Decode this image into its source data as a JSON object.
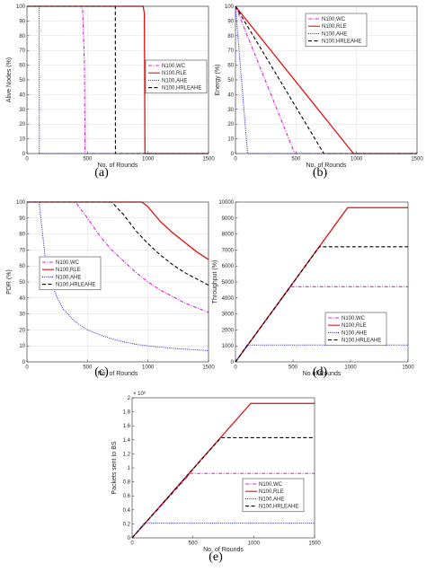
{
  "colors": {
    "WC": "#e020e0",
    "RLE": "#e01010",
    "AHE": "#2020e0",
    "HRLEAHE": "#000000"
  },
  "styles": {
    "WC": "dashdot",
    "RLE": "solid",
    "AHE": "dotted",
    "HRLEAHE": "dashed"
  },
  "chart_data": [
    {
      "id": "a",
      "type": "line",
      "panel_label": "(a)",
      "xlabel": "No. of Rounds",
      "ylabel": "Alive Nodes (%)",
      "xlim": [
        0,
        1500
      ],
      "ylim": [
        0,
        100
      ],
      "xticks": [
        0,
        500,
        1000,
        1500
      ],
      "yticks": [
        0,
        10,
        20,
        30,
        40,
        50,
        60,
        70,
        80,
        90,
        100
      ],
      "grid": true,
      "legend_position": "center-right",
      "series": [
        {
          "name": "N100,WC",
          "key": "WC",
          "points": [
            [
              0,
              100
            ],
            [
              440,
              100
            ],
            [
              460,
              98
            ],
            [
              475,
              60
            ],
            [
              480,
              0
            ],
            [
              1500,
              0
            ]
          ]
        },
        {
          "name": "N100,RLE",
          "key": "RLE",
          "points": [
            [
              0,
              100
            ],
            [
              960,
              100
            ],
            [
              970,
              95
            ],
            [
              975,
              0
            ],
            [
              1500,
              0
            ]
          ]
        },
        {
          "name": "N100,AHE",
          "key": "AHE",
          "points": [
            [
              0,
              100
            ],
            [
              100,
              100
            ],
            [
              102,
              0
            ],
            [
              1500,
              0
            ]
          ]
        },
        {
          "name": "N100,HRLEAHE",
          "key": "HRLEAHE",
          "points": [
            [
              0,
              100
            ],
            [
              730,
              100
            ],
            [
              731,
              0
            ],
            [
              1500,
              0
            ]
          ]
        }
      ]
    },
    {
      "id": "b",
      "type": "line",
      "panel_label": "(b)",
      "xlabel": "No. of Rounds",
      "ylabel": "Energy (%)",
      "xlim": [
        0,
        1500
      ],
      "ylim": [
        0,
        100
      ],
      "xticks": [
        0,
        500,
        1000,
        1500
      ],
      "yticks": [
        0,
        10,
        20,
        30,
        40,
        50,
        60,
        70,
        80,
        90,
        100
      ],
      "grid": true,
      "legend_position": "top-right",
      "series": [
        {
          "name": "N100,WC",
          "key": "WC",
          "points": [
            [
              0,
              100
            ],
            [
              490,
              0
            ],
            [
              1500,
              0
            ]
          ]
        },
        {
          "name": "N100,RLE",
          "key": "RLE",
          "points": [
            [
              0,
              100
            ],
            [
              975,
              0
            ],
            [
              1500,
              0
            ]
          ]
        },
        {
          "name": "N100,AHE",
          "key": "AHE",
          "points": [
            [
              0,
              100
            ],
            [
              100,
              0
            ],
            [
              1500,
              0
            ]
          ]
        },
        {
          "name": "N100,HRLEAHE",
          "key": "HRLEAHE",
          "points": [
            [
              0,
              100
            ],
            [
              730,
              0
            ],
            [
              1500,
              0
            ]
          ]
        }
      ]
    },
    {
      "id": "c",
      "type": "line",
      "panel_label": "(c)",
      "xlabel": "No. of Rounds",
      "ylabel": "PDR (%)",
      "xlim": [
        0,
        1500
      ],
      "ylim": [
        0,
        100
      ],
      "xticks": [
        0,
        500,
        1000,
        1500
      ],
      "yticks": [
        0,
        10,
        20,
        30,
        40,
        50,
        60,
        70,
        80,
        90,
        100
      ],
      "grid": true,
      "legend_position": "center-left",
      "series": [
        {
          "name": "N100,WC",
          "key": "WC",
          "points": [
            [
              0,
              100
            ],
            [
              400,
              100
            ],
            [
              500,
              90
            ],
            [
              600,
              79
            ],
            [
              700,
              70
            ],
            [
              800,
              63
            ],
            [
              900,
              56
            ],
            [
              1000,
              50
            ],
            [
              1100,
              45
            ],
            [
              1200,
              41
            ],
            [
              1300,
              37
            ],
            [
              1400,
              34
            ],
            [
              1500,
              31
            ]
          ]
        },
        {
          "name": "N100,RLE",
          "key": "RLE",
          "points": [
            [
              0,
              100
            ],
            [
              950,
              100
            ],
            [
              1000,
              97
            ],
            [
              1100,
              88
            ],
            [
              1200,
              81
            ],
            [
              1300,
              75
            ],
            [
              1400,
              69
            ],
            [
              1500,
              64
            ]
          ]
        },
        {
          "name": "N100,AHE",
          "key": "AHE",
          "points": [
            [
              0,
              100
            ],
            [
              100,
              100
            ],
            [
              150,
              66
            ],
            [
              200,
              50
            ],
            [
              250,
              40
            ],
            [
              300,
              33
            ],
            [
              400,
              25
            ],
            [
              500,
              20
            ],
            [
              600,
              17
            ],
            [
              700,
              14.5
            ],
            [
              800,
              12.5
            ],
            [
              900,
              11
            ],
            [
              1000,
              10
            ],
            [
              1200,
              8.5
            ],
            [
              1500,
              7
            ]
          ]
        },
        {
          "name": "N100,HRLEAHE",
          "key": "HRLEAHE",
          "points": [
            [
              0,
              100
            ],
            [
              700,
              100
            ],
            [
              800,
              92
            ],
            [
              900,
              82
            ],
            [
              1000,
              74
            ],
            [
              1100,
              67
            ],
            [
              1200,
              61
            ],
            [
              1300,
              56
            ],
            [
              1400,
              52
            ],
            [
              1500,
              48
            ]
          ]
        }
      ]
    },
    {
      "id": "d",
      "type": "line",
      "panel_label": "(d)",
      "xlabel": "No of Rounds",
      "ylabel": "Throughput (%)",
      "xlim": [
        0,
        1500
      ],
      "ylim": [
        0,
        10000
      ],
      "xticks": [
        0,
        500,
        1000,
        1500
      ],
      "yticks": [
        0,
        1000,
        2000,
        3000,
        4000,
        5000,
        6000,
        7000,
        8000,
        9000,
        10000
      ],
      "grid": false,
      "legend_position": "bottom-right",
      "series": [
        {
          "name": "N100,WC",
          "key": "WC",
          "points": [
            [
              0,
              0
            ],
            [
              480,
              4700
            ],
            [
              1500,
              4700
            ]
          ]
        },
        {
          "name": "N100,RLE",
          "key": "RLE",
          "points": [
            [
              0,
              0
            ],
            [
              975,
              9650
            ],
            [
              1500,
              9650
            ]
          ]
        },
        {
          "name": "N100,AHE",
          "key": "AHE",
          "points": [
            [
              0,
              0
            ],
            [
              100,
              1050
            ],
            [
              1500,
              1050
            ]
          ]
        },
        {
          "name": "N100,HRLEAHE",
          "key": "HRLEAHE",
          "points": [
            [
              0,
              0
            ],
            [
              730,
              7200
            ],
            [
              1500,
              7200
            ]
          ]
        }
      ]
    },
    {
      "id": "e",
      "type": "line",
      "panel_label": "(e)",
      "xlabel": "No. of Rounds",
      "ylabel": "Packets sent to BS",
      "exponent_label": "× 10⁶",
      "xlim": [
        0,
        1500
      ],
      "ylim": [
        0,
        2
      ],
      "xticks": [
        0,
        500,
        1000,
        1500
      ],
      "yticks": [
        0,
        0.2,
        0.4,
        0.6,
        0.8,
        1,
        1.2,
        1.4,
        1.6,
        1.8,
        2
      ],
      "grid": false,
      "legend_position": "bottom-right",
      "series": [
        {
          "name": "N100,WC",
          "key": "WC",
          "points": [
            [
              0,
              0
            ],
            [
              480,
              0.92
            ],
            [
              1500,
              0.92
            ]
          ]
        },
        {
          "name": "N100,RLE",
          "key": "RLE",
          "points": [
            [
              0,
              0
            ],
            [
              975,
              1.92
            ],
            [
              1500,
              1.92
            ]
          ]
        },
        {
          "name": "N100,AHE",
          "key": "AHE",
          "points": [
            [
              0,
              0
            ],
            [
              100,
              0.21
            ],
            [
              1500,
              0.21
            ]
          ]
        },
        {
          "name": "N100,HRLEAHE",
          "key": "HRLEAHE",
          "points": [
            [
              0,
              0
            ],
            [
              730,
              1.43
            ],
            [
              1500,
              1.43
            ]
          ]
        }
      ]
    }
  ]
}
